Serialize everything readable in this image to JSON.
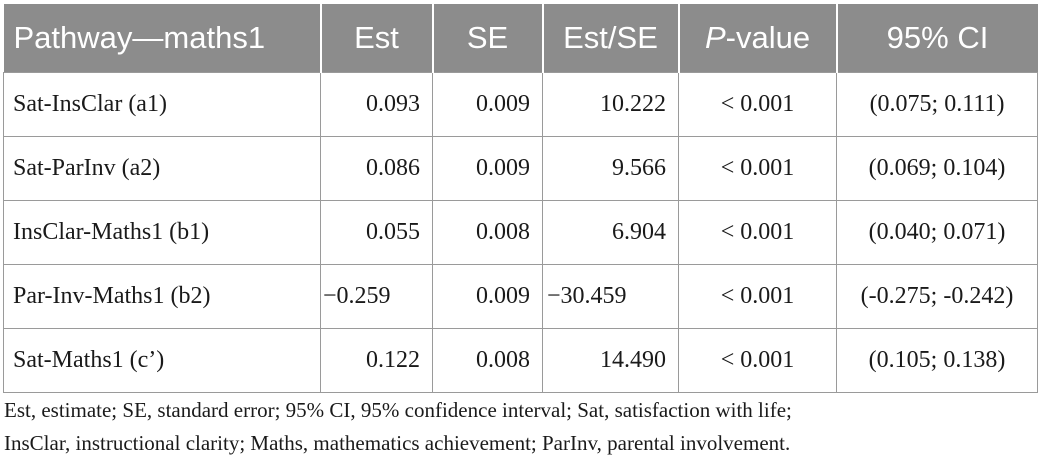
{
  "table": {
    "headers": {
      "pathway": "Pathway—maths1",
      "est": "Est",
      "se": "SE",
      "est_se": "Est/SE",
      "p_italic": "P",
      "p_rest": "-value",
      "ci": "95% CI"
    },
    "rows": [
      {
        "pathway": "Sat-InsClar (a1)",
        "est": "0.093",
        "se": "0.009",
        "est_se": "10.222",
        "p": "< 0.001",
        "ci": "(0.075; 0.111)"
      },
      {
        "pathway": "Sat-ParInv (a2)",
        "est": "0.086",
        "se": "0.009",
        "est_se": "9.566",
        "p": "< 0.001",
        "ci": "(0.069; 0.104)"
      },
      {
        "pathway": "InsClar-Maths1 (b1)",
        "est": "0.055",
        "se": "0.008",
        "est_se": "6.904",
        "p": "< 0.001",
        "ci": "(0.040; 0.071)"
      },
      {
        "pathway": "Par-Inv-Maths1 (b2)",
        "est": "−0.259",
        "se": "0.009",
        "est_se": "−30.459",
        "p": "< 0.001",
        "ci": "(-0.275; -0.242)"
      },
      {
        "pathway": "Sat-Maths1 (c’)",
        "est": "0.122",
        "se": "0.008",
        "est_se": "14.490",
        "p": "< 0.001",
        "ci": "(0.105; 0.138)"
      }
    ]
  },
  "footnote": {
    "line1": "Est, estimate; SE, standard error; 95% CI, 95% confidence interval; Sat, satisfaction with life;",
    "line2": "InsClar, instructional clarity; Maths, mathematics achievement; ParInv, parental involvement."
  }
}
